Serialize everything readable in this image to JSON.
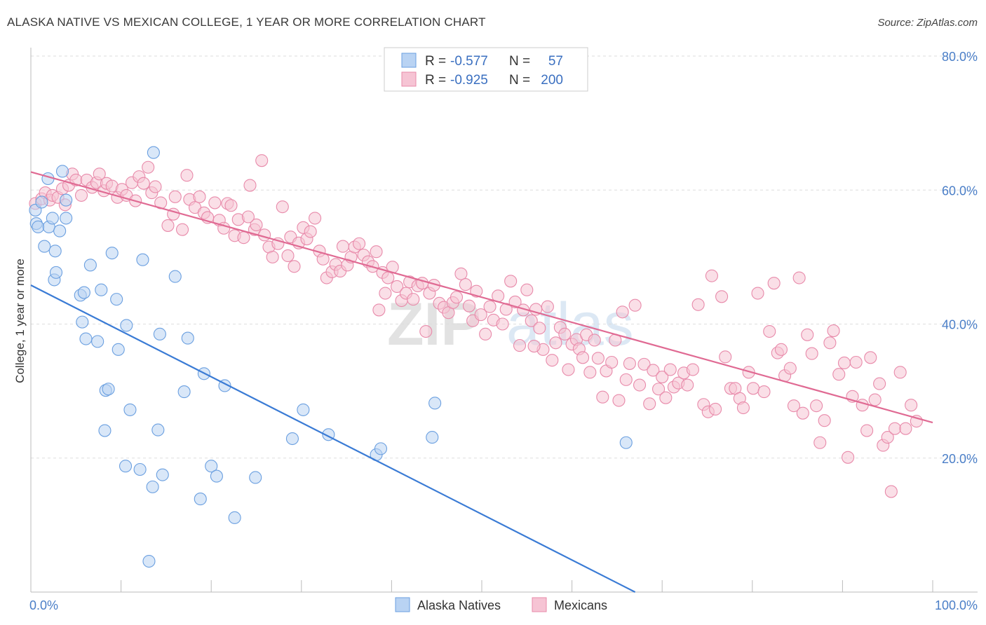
{
  "header": {
    "title": "ALASKA NATIVE VS MEXICAN COLLEGE, 1 YEAR OR MORE CORRELATION CHART",
    "source": "Source: ZipAtlas.com"
  },
  "colors": {
    "blue": "#6a9fe0",
    "blue_fill": "#b9d3f3",
    "blue_line": "#3a7bd5",
    "pink": "#e88aaa",
    "pink_fill": "#f6c4d4",
    "pink_line": "#e06a93",
    "grid": "#dddddd",
    "axis_label": "#4a7ec7"
  },
  "legend": {
    "rows": [
      {
        "r_label": "R =",
        "r_value": "-0.577",
        "n_label": "N =",
        "n_value": "57"
      },
      {
        "r_label": "R =",
        "r_value": "-0.925",
        "n_label": "N =",
        "n_value": "200"
      }
    ]
  },
  "bottom_legend": [
    {
      "label": "Alaska Natives"
    },
    {
      "label": "Mexicans"
    }
  ],
  "watermark": {
    "part1": "ZIP",
    "part2": "atlas"
  },
  "chart_data": {
    "type": "scatter",
    "title": "ALASKA NATIVE VS MEXICAN COLLEGE, 1 YEAR OR MORE CORRELATION CHART",
    "xlabel": "",
    "ylabel": "College, 1 year or more",
    "xlim": [
      0,
      100
    ],
    "ylim": [
      0,
      80
    ],
    "x_tick_labels": [
      "0.0%",
      "100.0%"
    ],
    "y_ticks": [
      20,
      40,
      60,
      80
    ],
    "y_tick_labels": [
      "20.0%",
      "40.0%",
      "60.0%",
      "80.0%"
    ],
    "series": [
      {
        "name": "Alaska Natives",
        "r": -0.577,
        "n": 57,
        "trendline": [
          [
            0,
            45.8
          ],
          [
            67,
            0
          ]
        ],
        "points": [
          [
            0.5,
            57.0
          ],
          [
            0.6,
            55.0
          ],
          [
            0.8,
            54.5
          ],
          [
            1.2,
            58.2
          ],
          [
            1.5,
            51.6
          ],
          [
            1.9,
            61.7
          ],
          [
            2.0,
            54.5
          ],
          [
            2.4,
            55.8
          ],
          [
            2.6,
            46.6
          ],
          [
            2.7,
            50.9
          ],
          [
            2.8,
            47.7
          ],
          [
            3.2,
            53.9
          ],
          [
            3.5,
            62.8
          ],
          [
            3.9,
            58.5
          ],
          [
            3.9,
            55.8
          ],
          [
            5.5,
            44.3
          ],
          [
            5.7,
            40.3
          ],
          [
            5.9,
            44.7
          ],
          [
            6.1,
            37.8
          ],
          [
            6.6,
            48.8
          ],
          [
            7.4,
            37.4
          ],
          [
            7.8,
            45.1
          ],
          [
            8.2,
            24.1
          ],
          [
            8.3,
            30.1
          ],
          [
            8.6,
            30.3
          ],
          [
            9.0,
            50.6
          ],
          [
            9.5,
            43.7
          ],
          [
            9.7,
            36.2
          ],
          [
            10.5,
            18.8
          ],
          [
            10.6,
            39.8
          ],
          [
            11.0,
            27.2
          ],
          [
            12.1,
            18.3
          ],
          [
            12.4,
            49.6
          ],
          [
            13.5,
            15.7
          ],
          [
            13.6,
            65.6
          ],
          [
            14.1,
            24.2
          ],
          [
            14.3,
            38.5
          ],
          [
            14.6,
            17.5
          ],
          [
            16.0,
            47.1
          ],
          [
            17.0,
            29.9
          ],
          [
            17.4,
            37.9
          ],
          [
            18.8,
            13.9
          ],
          [
            19.2,
            32.6
          ],
          [
            20.0,
            18.8
          ],
          [
            20.6,
            17.3
          ],
          [
            21.5,
            30.8
          ],
          [
            22.6,
            11.1
          ],
          [
            24.9,
            17.1
          ],
          [
            29.0,
            22.9
          ],
          [
            30.2,
            27.2
          ],
          [
            33.0,
            23.5
          ],
          [
            38.3,
            20.5
          ],
          [
            38.8,
            21.4
          ],
          [
            44.5,
            23.1
          ],
          [
            44.8,
            28.2
          ],
          [
            66.0,
            22.3
          ],
          [
            13.1,
            4.6
          ]
        ]
      },
      {
        "name": "Mexicans",
        "r": -0.925,
        "n": 200,
        "trendline": [
          [
            0,
            62.7
          ],
          [
            100,
            25.3
          ]
        ],
        "points": [
          [
            0.5,
            58.0
          ],
          [
            1.2,
            58.7
          ],
          [
            1.6,
            59.6
          ],
          [
            2.1,
            58.5
          ],
          [
            2.4,
            59.2
          ],
          [
            3.0,
            58.9
          ],
          [
            3.5,
            60.2
          ],
          [
            3.8,
            57.8
          ],
          [
            4.2,
            60.7
          ],
          [
            4.6,
            62.4
          ],
          [
            5.0,
            61.5
          ],
          [
            5.6,
            59.2
          ],
          [
            6.2,
            61.5
          ],
          [
            6.8,
            60.4
          ],
          [
            7.3,
            61.1
          ],
          [
            7.6,
            62.4
          ],
          [
            8.1,
            59.9
          ],
          [
            8.4,
            61.0
          ],
          [
            9.0,
            60.6
          ],
          [
            9.6,
            58.9
          ],
          [
            10.1,
            60.1
          ],
          [
            10.6,
            59.2
          ],
          [
            11.2,
            61.1
          ],
          [
            11.6,
            58.4
          ],
          [
            12.0,
            62.0
          ],
          [
            12.5,
            61.0
          ],
          [
            13.0,
            63.4
          ],
          [
            13.4,
            59.6
          ],
          [
            13.8,
            60.5
          ],
          [
            14.4,
            58.1
          ],
          [
            15.2,
            54.7
          ],
          [
            15.8,
            56.4
          ],
          [
            16.0,
            59.0
          ],
          [
            16.8,
            54.1
          ],
          [
            17.3,
            62.2
          ],
          [
            17.6,
            58.6
          ],
          [
            18.2,
            57.4
          ],
          [
            18.7,
            59.0
          ],
          [
            19.2,
            56.6
          ],
          [
            19.6,
            55.9
          ],
          [
            20.4,
            58.1
          ],
          [
            20.9,
            55.5
          ],
          [
            21.4,
            54.3
          ],
          [
            21.8,
            58.0
          ],
          [
            22.2,
            57.7
          ],
          [
            22.6,
            53.2
          ],
          [
            23.0,
            55.6
          ],
          [
            23.6,
            52.9
          ],
          [
            24.3,
            60.7
          ],
          [
            24.8,
            54.1
          ],
          [
            25.0,
            54.8
          ],
          [
            25.6,
            64.4
          ],
          [
            25.9,
            53.3
          ],
          [
            26.4,
            51.5
          ],
          [
            26.8,
            50.0
          ],
          [
            27.4,
            52.0
          ],
          [
            27.9,
            57.5
          ],
          [
            28.5,
            50.2
          ],
          [
            28.8,
            53.0
          ],
          [
            29.2,
            48.6
          ],
          [
            29.7,
            52.1
          ],
          [
            30.2,
            54.4
          ],
          [
            30.6,
            52.7
          ],
          [
            31.0,
            53.8
          ],
          [
            31.5,
            55.8
          ],
          [
            32.0,
            50.9
          ],
          [
            32.4,
            49.7
          ],
          [
            32.8,
            46.9
          ],
          [
            33.4,
            47.8
          ],
          [
            33.8,
            48.9
          ],
          [
            34.3,
            47.9
          ],
          [
            34.6,
            51.6
          ],
          [
            35.1,
            48.8
          ],
          [
            35.5,
            50.0
          ],
          [
            35.9,
            51.5
          ],
          [
            36.4,
            52.0
          ],
          [
            36.9,
            50.3
          ],
          [
            37.4,
            49.3
          ],
          [
            37.9,
            48.6
          ],
          [
            38.3,
            50.8
          ],
          [
            38.6,
            42.1
          ],
          [
            39.0,
            47.7
          ],
          [
            39.3,
            44.6
          ],
          [
            39.6,
            46.9
          ],
          [
            40.1,
            48.5
          ],
          [
            40.6,
            45.6
          ],
          [
            41.1,
            43.5
          ],
          [
            41.6,
            44.6
          ],
          [
            42.0,
            46.3
          ],
          [
            42.4,
            43.7
          ],
          [
            42.9,
            45.7
          ],
          [
            43.4,
            46.1
          ],
          [
            43.8,
            38.9
          ],
          [
            44.2,
            44.6
          ],
          [
            44.7,
            45.8
          ],
          [
            45.3,
            43.1
          ],
          [
            45.8,
            42.5
          ],
          [
            46.3,
            41.7
          ],
          [
            46.8,
            43.2
          ],
          [
            47.2,
            44.0
          ],
          [
            47.7,
            47.5
          ],
          [
            48.2,
            45.9
          ],
          [
            48.6,
            42.7
          ],
          [
            49.0,
            40.5
          ],
          [
            49.4,
            44.9
          ],
          [
            49.9,
            41.4
          ],
          [
            50.4,
            38.5
          ],
          [
            50.9,
            42.6
          ],
          [
            51.3,
            40.6
          ],
          [
            51.8,
            44.2
          ],
          [
            52.3,
            40.0
          ],
          [
            52.7,
            42.2
          ],
          [
            53.2,
            46.4
          ],
          [
            53.7,
            43.3
          ],
          [
            54.2,
            36.8
          ],
          [
            54.6,
            42.1
          ],
          [
            55.0,
            45.1
          ],
          [
            55.5,
            40.5
          ],
          [
            56.0,
            42.2
          ],
          [
            56.4,
            39.4
          ],
          [
            56.8,
            36.2
          ],
          [
            57.3,
            42.6
          ],
          [
            57.8,
            34.6
          ],
          [
            58.2,
            37.2
          ],
          [
            58.7,
            39.5
          ],
          [
            59.2,
            38.5
          ],
          [
            59.6,
            33.2
          ],
          [
            60.0,
            37.0
          ],
          [
            60.5,
            37.7
          ],
          [
            60.8,
            36.3
          ],
          [
            61.2,
            35.0
          ],
          [
            61.6,
            38.4
          ],
          [
            62.0,
            32.8
          ],
          [
            62.5,
            37.6
          ],
          [
            62.9,
            34.9
          ],
          [
            63.4,
            29.1
          ],
          [
            63.8,
            33.0
          ],
          [
            64.4,
            34.3
          ],
          [
            64.8,
            37.6
          ],
          [
            65.2,
            28.6
          ],
          [
            65.6,
            41.8
          ],
          [
            66.0,
            31.7
          ],
          [
            66.4,
            34.1
          ],
          [
            67.0,
            42.8
          ],
          [
            67.5,
            30.9
          ],
          [
            68.0,
            34.0
          ],
          [
            68.6,
            28.1
          ],
          [
            69.0,
            33.1
          ],
          [
            69.6,
            30.3
          ],
          [
            70.0,
            32.1
          ],
          [
            70.4,
            29.0
          ],
          [
            70.9,
            33.2
          ],
          [
            71.3,
            30.6
          ],
          [
            71.8,
            31.2
          ],
          [
            72.4,
            32.7
          ],
          [
            72.8,
            30.9
          ],
          [
            73.4,
            33.2
          ],
          [
            74.0,
            42.9
          ],
          [
            74.6,
            28.0
          ],
          [
            75.1,
            26.9
          ],
          [
            75.5,
            47.2
          ],
          [
            75.9,
            27.3
          ],
          [
            76.6,
            44.1
          ],
          [
            77.0,
            35.1
          ],
          [
            77.6,
            30.4
          ],
          [
            78.1,
            30.4
          ],
          [
            78.6,
            28.9
          ],
          [
            79.0,
            27.5
          ],
          [
            79.6,
            32.8
          ],
          [
            80.1,
            30.4
          ],
          [
            80.6,
            44.6
          ],
          [
            81.3,
            29.9
          ],
          [
            81.9,
            38.9
          ],
          [
            82.4,
            46.1
          ],
          [
            82.8,
            35.7
          ],
          [
            83.2,
            36.2
          ],
          [
            83.6,
            32.3
          ],
          [
            84.2,
            33.4
          ],
          [
            84.6,
            27.8
          ],
          [
            85.2,
            46.9
          ],
          [
            85.6,
            26.7
          ],
          [
            86.1,
            38.4
          ],
          [
            86.6,
            35.6
          ],
          [
            87.1,
            27.8
          ],
          [
            87.5,
            22.3
          ],
          [
            88.0,
            25.6
          ],
          [
            88.6,
            37.2
          ],
          [
            89.0,
            39.0
          ],
          [
            89.6,
            32.5
          ],
          [
            90.2,
            34.2
          ],
          [
            90.6,
            20.1
          ],
          [
            91.1,
            29.2
          ],
          [
            91.5,
            34.3
          ],
          [
            92.2,
            27.9
          ],
          [
            92.7,
            24.1
          ],
          [
            93.1,
            35.0
          ],
          [
            93.6,
            28.7
          ],
          [
            94.1,
            31.1
          ],
          [
            94.5,
            21.9
          ],
          [
            95.0,
            23.1
          ],
          [
            95.4,
            15.0
          ],
          [
            95.8,
            24.4
          ],
          [
            96.4,
            32.8
          ],
          [
            97.0,
            24.4
          ],
          [
            97.6,
            27.9
          ],
          [
            98.2,
            25.5
          ],
          [
            24.1,
            56.0
          ],
          [
            55.8,
            36.7
          ]
        ]
      }
    ]
  }
}
